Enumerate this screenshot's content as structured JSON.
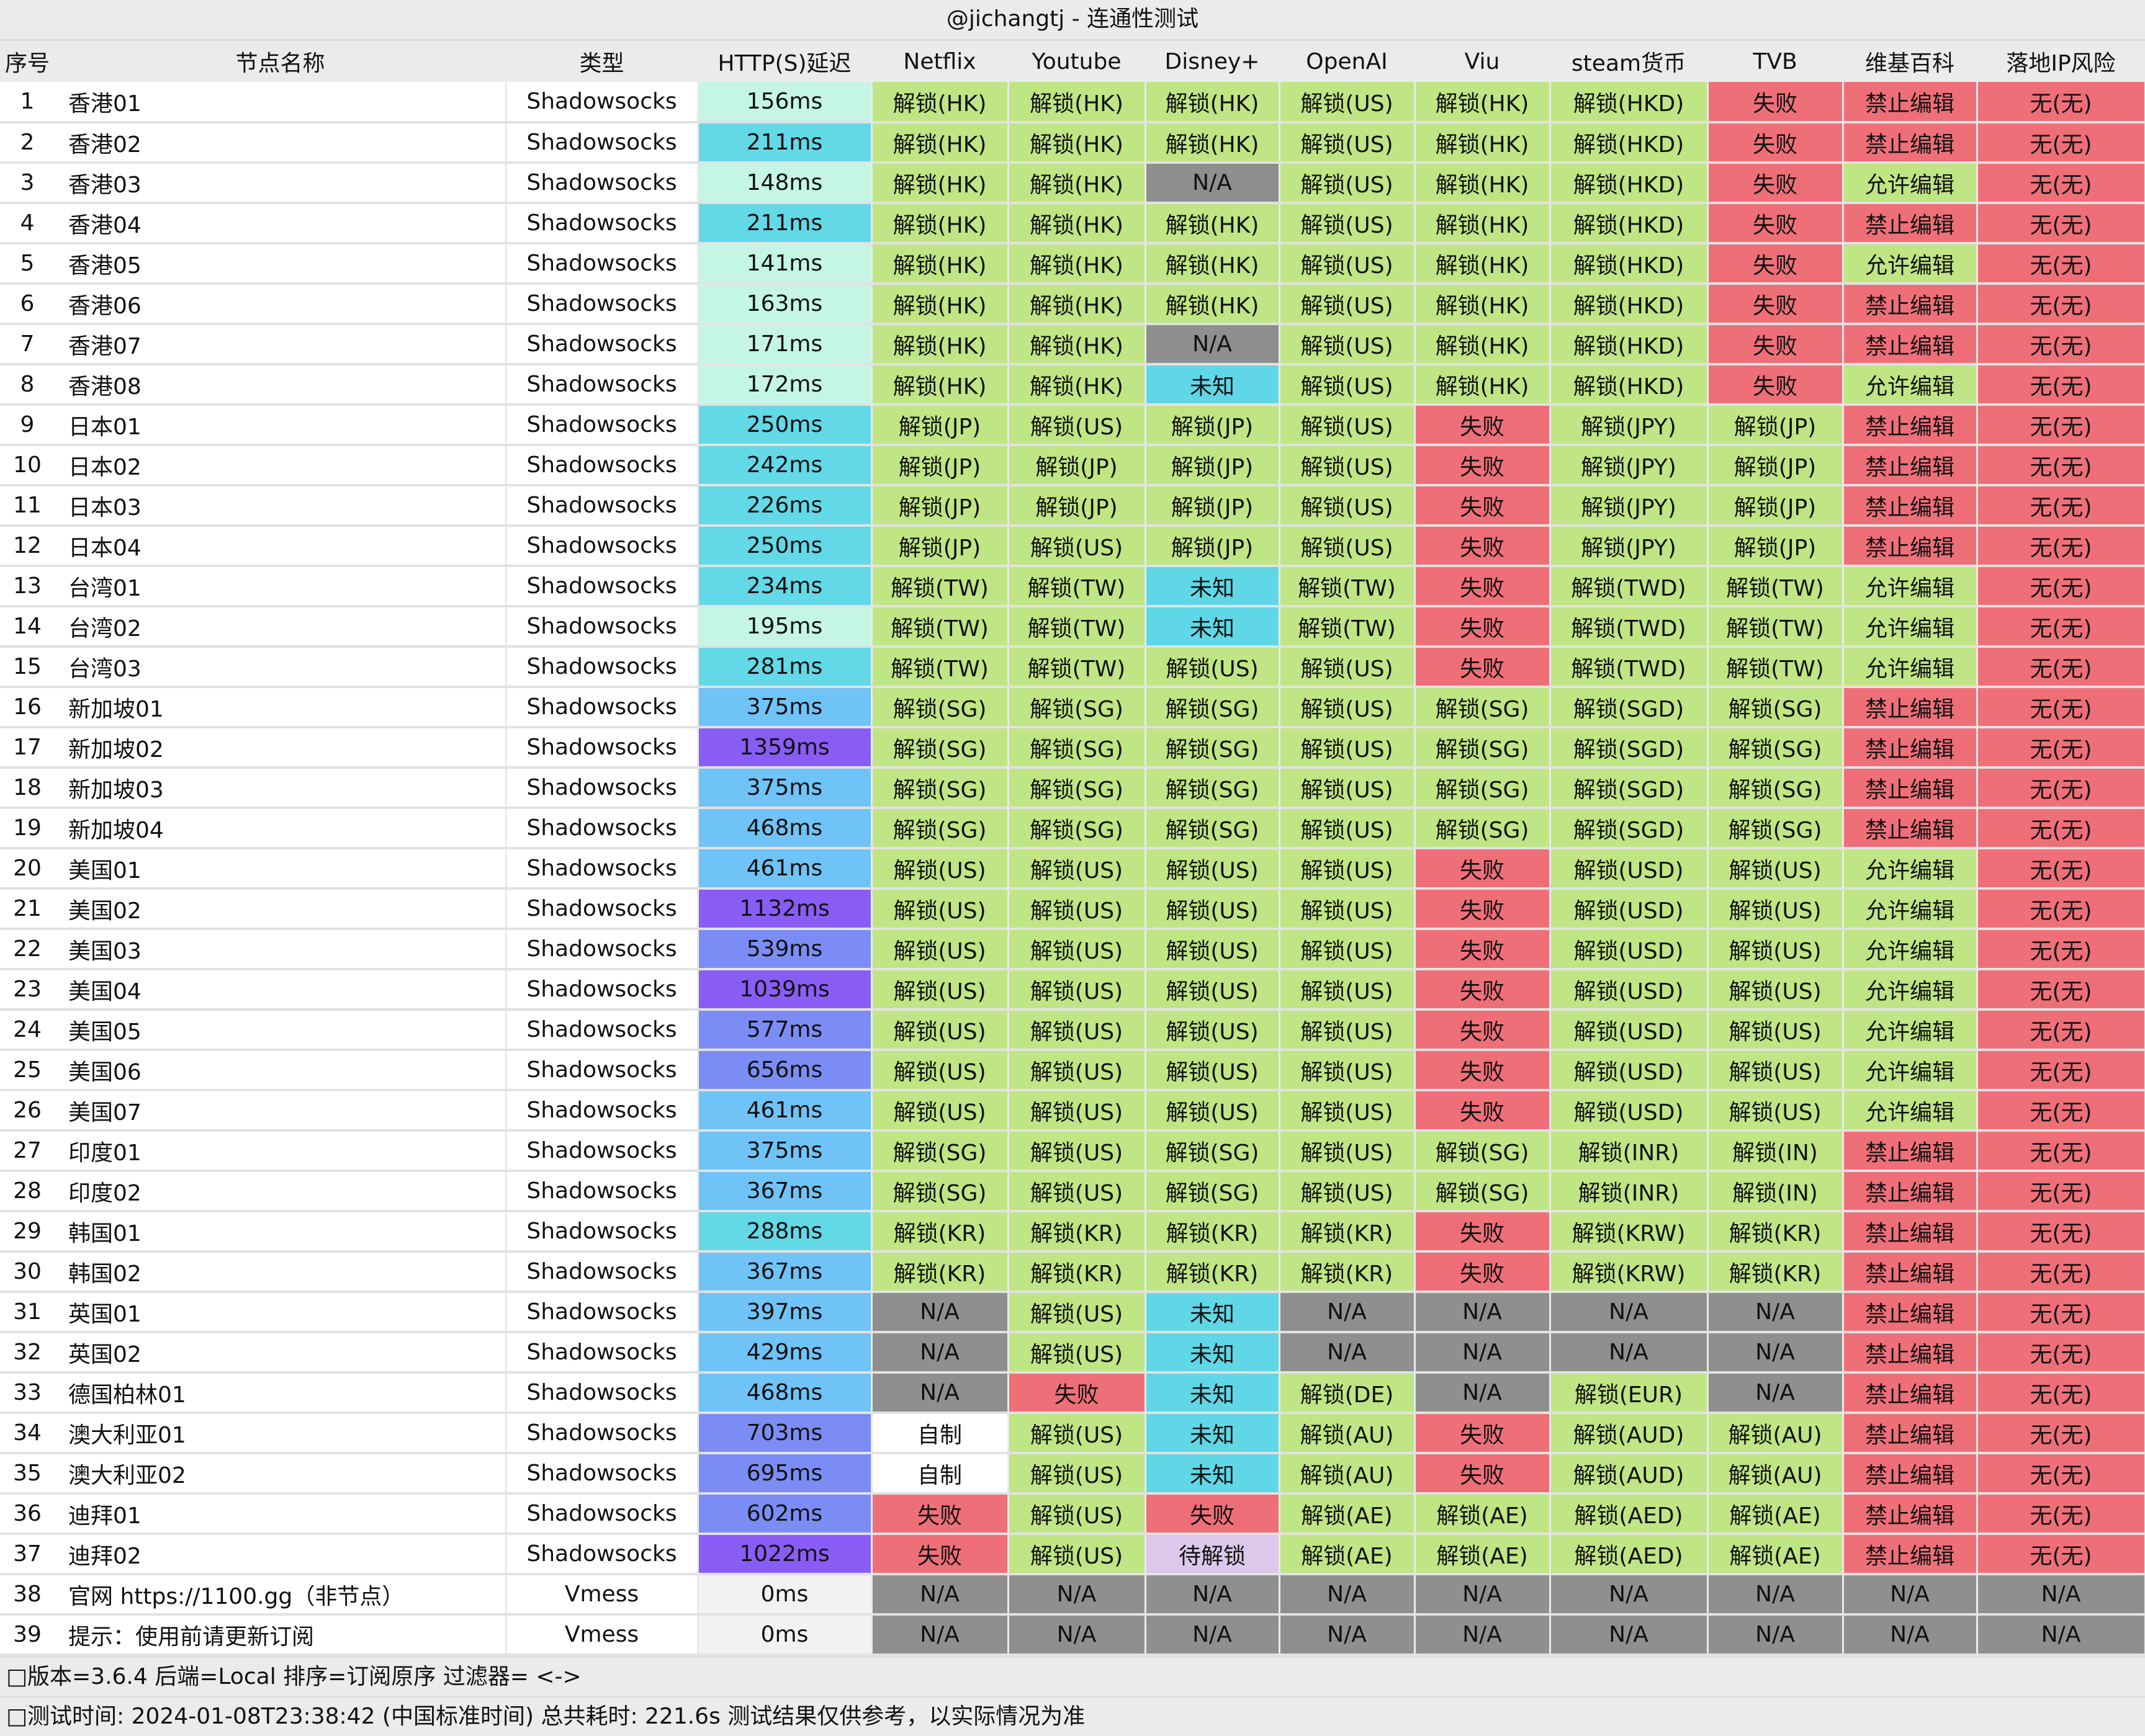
{
  "title": "@jichangtj - 连通性测试",
  "headers": [
    "序号",
    "节点名称",
    "类型",
    "HTTP(S)延迟",
    "Netflix",
    "Youtube",
    "Disney+",
    "OpenAI",
    "Viu",
    "steam货币",
    "TVB",
    "维基百科",
    "落地IP风险"
  ],
  "rows": [
    [
      "1",
      "香港01",
      "Shadowsocks",
      "156ms",
      "解锁(HK)",
      "解锁(HK)",
      "解锁(HK)",
      "解锁(US)",
      "解锁(HK)",
      "解锁(HKD)",
      "失败",
      "禁止编辑",
      "无(无)"
    ],
    [
      "2",
      "香港02",
      "Shadowsocks",
      "211ms",
      "解锁(HK)",
      "解锁(HK)",
      "解锁(HK)",
      "解锁(US)",
      "解锁(HK)",
      "解锁(HKD)",
      "失败",
      "禁止编辑",
      "无(无)"
    ],
    [
      "3",
      "香港03",
      "Shadowsocks",
      "148ms",
      "解锁(HK)",
      "解锁(HK)",
      "N/A",
      "解锁(US)",
      "解锁(HK)",
      "解锁(HKD)",
      "失败",
      "允许编辑",
      "无(无)"
    ],
    [
      "4",
      "香港04",
      "Shadowsocks",
      "211ms",
      "解锁(HK)",
      "解锁(HK)",
      "解锁(HK)",
      "解锁(US)",
      "解锁(HK)",
      "解锁(HKD)",
      "失败",
      "禁止编辑",
      "无(无)"
    ],
    [
      "5",
      "香港05",
      "Shadowsocks",
      "141ms",
      "解锁(HK)",
      "解锁(HK)",
      "解锁(HK)",
      "解锁(US)",
      "解锁(HK)",
      "解锁(HKD)",
      "失败",
      "允许编辑",
      "无(无)"
    ],
    [
      "6",
      "香港06",
      "Shadowsocks",
      "163ms",
      "解锁(HK)",
      "解锁(HK)",
      "解锁(HK)",
      "解锁(US)",
      "解锁(HK)",
      "解锁(HKD)",
      "失败",
      "禁止编辑",
      "无(无)"
    ],
    [
      "7",
      "香港07",
      "Shadowsocks",
      "171ms",
      "解锁(HK)",
      "解锁(HK)",
      "N/A",
      "解锁(US)",
      "解锁(HK)",
      "解锁(HKD)",
      "失败",
      "禁止编辑",
      "无(无)"
    ],
    [
      "8",
      "香港08",
      "Shadowsocks",
      "172ms",
      "解锁(HK)",
      "解锁(HK)",
      "未知",
      "解锁(US)",
      "解锁(HK)",
      "解锁(HKD)",
      "失败",
      "允许编辑",
      "无(无)"
    ],
    [
      "9",
      "日本01",
      "Shadowsocks",
      "250ms",
      "解锁(JP)",
      "解锁(US)",
      "解锁(JP)",
      "解锁(US)",
      "失败",
      "解锁(JPY)",
      "解锁(JP)",
      "禁止编辑",
      "无(无)"
    ],
    [
      "10",
      "日本02",
      "Shadowsocks",
      "242ms",
      "解锁(JP)",
      "解锁(JP)",
      "解锁(JP)",
      "解锁(US)",
      "失败",
      "解锁(JPY)",
      "解锁(JP)",
      "禁止编辑",
      "无(无)"
    ],
    [
      "11",
      "日本03",
      "Shadowsocks",
      "226ms",
      "解锁(JP)",
      "解锁(JP)",
      "解锁(JP)",
      "解锁(US)",
      "失败",
      "解锁(JPY)",
      "解锁(JP)",
      "禁止编辑",
      "无(无)"
    ],
    [
      "12",
      "日本04",
      "Shadowsocks",
      "250ms",
      "解锁(JP)",
      "解锁(US)",
      "解锁(JP)",
      "解锁(US)",
      "失败",
      "解锁(JPY)",
      "解锁(JP)",
      "禁止编辑",
      "无(无)"
    ],
    [
      "13",
      "台湾01",
      "Shadowsocks",
      "234ms",
      "解锁(TW)",
      "解锁(TW)",
      "未知",
      "解锁(TW)",
      "失败",
      "解锁(TWD)",
      "解锁(TW)",
      "允许编辑",
      "无(无)"
    ],
    [
      "14",
      "台湾02",
      "Shadowsocks",
      "195ms",
      "解锁(TW)",
      "解锁(TW)",
      "未知",
      "解锁(TW)",
      "失败",
      "解锁(TWD)",
      "解锁(TW)",
      "允许编辑",
      "无(无)"
    ],
    [
      "15",
      "台湾03",
      "Shadowsocks",
      "281ms",
      "解锁(TW)",
      "解锁(TW)",
      "解锁(US)",
      "解锁(US)",
      "失败",
      "解锁(TWD)",
      "解锁(TW)",
      "允许编辑",
      "无(无)"
    ],
    [
      "16",
      "新加坡01",
      "Shadowsocks",
      "375ms",
      "解锁(SG)",
      "解锁(SG)",
      "解锁(SG)",
      "解锁(US)",
      "解锁(SG)",
      "解锁(SGD)",
      "解锁(SG)",
      "禁止编辑",
      "无(无)"
    ],
    [
      "17",
      "新加坡02",
      "Shadowsocks",
      "1359ms",
      "解锁(SG)",
      "解锁(SG)",
      "解锁(SG)",
      "解锁(US)",
      "解锁(SG)",
      "解锁(SGD)",
      "解锁(SG)",
      "禁止编辑",
      "无(无)"
    ],
    [
      "18",
      "新加坡03",
      "Shadowsocks",
      "375ms",
      "解锁(SG)",
      "解锁(SG)",
      "解锁(SG)",
      "解锁(US)",
      "解锁(SG)",
      "解锁(SGD)",
      "解锁(SG)",
      "禁止编辑",
      "无(无)"
    ],
    [
      "19",
      "新加坡04",
      "Shadowsocks",
      "468ms",
      "解锁(SG)",
      "解锁(SG)",
      "解锁(SG)",
      "解锁(US)",
      "解锁(SG)",
      "解锁(SGD)",
      "解锁(SG)",
      "禁止编辑",
      "无(无)"
    ],
    [
      "20",
      "美国01",
      "Shadowsocks",
      "461ms",
      "解锁(US)",
      "解锁(US)",
      "解锁(US)",
      "解锁(US)",
      "失败",
      "解锁(USD)",
      "解锁(US)",
      "允许编辑",
      "无(无)"
    ],
    [
      "21",
      "美国02",
      "Shadowsocks",
      "1132ms",
      "解锁(US)",
      "解锁(US)",
      "解锁(US)",
      "解锁(US)",
      "失败",
      "解锁(USD)",
      "解锁(US)",
      "允许编辑",
      "无(无)"
    ],
    [
      "22",
      "美国03",
      "Shadowsocks",
      "539ms",
      "解锁(US)",
      "解锁(US)",
      "解锁(US)",
      "解锁(US)",
      "失败",
      "解锁(USD)",
      "解锁(US)",
      "允许编辑",
      "无(无)"
    ],
    [
      "23",
      "美国04",
      "Shadowsocks",
      "1039ms",
      "解锁(US)",
      "解锁(US)",
      "解锁(US)",
      "解锁(US)",
      "失败",
      "解锁(USD)",
      "解锁(US)",
      "允许编辑",
      "无(无)"
    ],
    [
      "24",
      "美国05",
      "Shadowsocks",
      "577ms",
      "解锁(US)",
      "解锁(US)",
      "解锁(US)",
      "解锁(US)",
      "失败",
      "解锁(USD)",
      "解锁(US)",
      "允许编辑",
      "无(无)"
    ],
    [
      "25",
      "美国06",
      "Shadowsocks",
      "656ms",
      "解锁(US)",
      "解锁(US)",
      "解锁(US)",
      "解锁(US)",
      "失败",
      "解锁(USD)",
      "解锁(US)",
      "允许编辑",
      "无(无)"
    ],
    [
      "26",
      "美国07",
      "Shadowsocks",
      "461ms",
      "解锁(US)",
      "解锁(US)",
      "解锁(US)",
      "解锁(US)",
      "失败",
      "解锁(USD)",
      "解锁(US)",
      "允许编辑",
      "无(无)"
    ],
    [
      "27",
      "印度01",
      "Shadowsocks",
      "375ms",
      "解锁(SG)",
      "解锁(US)",
      "解锁(SG)",
      "解锁(US)",
      "解锁(SG)",
      "解锁(INR)",
      "解锁(IN)",
      "禁止编辑",
      "无(无)"
    ],
    [
      "28",
      "印度02",
      "Shadowsocks",
      "367ms",
      "解锁(SG)",
      "解锁(US)",
      "解锁(SG)",
      "解锁(US)",
      "解锁(SG)",
      "解锁(INR)",
      "解锁(IN)",
      "禁止编辑",
      "无(无)"
    ],
    [
      "29",
      "韩国01",
      "Shadowsocks",
      "288ms",
      "解锁(KR)",
      "解锁(KR)",
      "解锁(KR)",
      "解锁(KR)",
      "失败",
      "解锁(KRW)",
      "解锁(KR)",
      "禁止编辑",
      "无(无)"
    ],
    [
      "30",
      "韩国02",
      "Shadowsocks",
      "367ms",
      "解锁(KR)",
      "解锁(KR)",
      "解锁(KR)",
      "解锁(KR)",
      "失败",
      "解锁(KRW)",
      "解锁(KR)",
      "禁止编辑",
      "无(无)"
    ],
    [
      "31",
      "英国01",
      "Shadowsocks",
      "397ms",
      "N/A",
      "解锁(US)",
      "未知",
      "N/A",
      "N/A",
      "N/A",
      "N/A",
      "禁止编辑",
      "无(无)"
    ],
    [
      "32",
      "英国02",
      "Shadowsocks",
      "429ms",
      "N/A",
      "解锁(US)",
      "未知",
      "N/A",
      "N/A",
      "N/A",
      "N/A",
      "禁止编辑",
      "无(无)"
    ],
    [
      "33",
      "德国柏林01",
      "Shadowsocks",
      "468ms",
      "N/A",
      "失败",
      "未知",
      "解锁(DE)",
      "N/A",
      "解锁(EUR)",
      "N/A",
      "禁止编辑",
      "无(无)"
    ],
    [
      "34",
      "澳大利亚01",
      "Shadowsocks",
      "703ms",
      "自制",
      "解锁(US)",
      "未知",
      "解锁(AU)",
      "失败",
      "解锁(AUD)",
      "解锁(AU)",
      "禁止编辑",
      "无(无)"
    ],
    [
      "35",
      "澳大利亚02",
      "Shadowsocks",
      "695ms",
      "自制",
      "解锁(US)",
      "未知",
      "解锁(AU)",
      "失败",
      "解锁(AUD)",
      "解锁(AU)",
      "禁止编辑",
      "无(无)"
    ],
    [
      "36",
      "迪拜01",
      "Shadowsocks",
      "602ms",
      "失败",
      "解锁(US)",
      "失败",
      "解锁(AE)",
      "解锁(AE)",
      "解锁(AED)",
      "解锁(AE)",
      "禁止编辑",
      "无(无)"
    ],
    [
      "37",
      "迪拜02",
      "Shadowsocks",
      "1022ms",
      "失败",
      "解锁(US)",
      "待解锁",
      "解锁(AE)",
      "解锁(AE)",
      "解锁(AED)",
      "解锁(AE)",
      "禁止编辑",
      "无(无)"
    ],
    [
      "38",
      "官网 https://1100.gg（非节点）",
      "Vmess",
      "0ms",
      "N/A",
      "N/A",
      "N/A",
      "N/A",
      "N/A",
      "N/A",
      "N/A",
      "N/A",
      "N/A"
    ],
    [
      "39",
      "提示：使用前请更新订阅",
      "Vmess",
      "0ms",
      "N/A",
      "N/A",
      "N/A",
      "N/A",
      "N/A",
      "N/A",
      "N/A",
      "N/A",
      "N/A"
    ]
  ],
  "footer": {
    "line1": "□版本=3.6.4 后端=Local 排序=订阅原序 过滤器= <->",
    "line2": "□测试时间: 2024-01-08T23:38:42 (中国标准时间) 总共耗时: 221.6s 测试结果仅供参考，以实际情况为准"
  },
  "colors": {
    "unlocked": "#bfe584",
    "failed": "#ef6f79",
    "na": "#8f8f8f",
    "unknown": "#5fd7e6",
    "pending": "#dcc8ea"
  }
}
